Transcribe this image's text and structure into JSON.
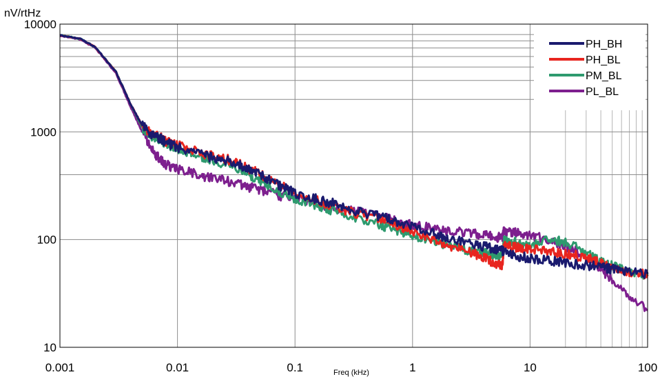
{
  "chart_data": {
    "type": "line",
    "title": "",
    "ylabel": "nV/rtHz",
    "xlabel": "Freq (kHz)",
    "x_scale": "log",
    "y_scale": "log",
    "xlim": [
      0.001,
      100
    ],
    "ylim": [
      10,
      10000
    ],
    "x_ticks": [
      "0.001",
      "0.01",
      "0.1",
      "1",
      "10",
      "100"
    ],
    "y_ticks": [
      "10",
      "100",
      "1000",
      "10000"
    ],
    "grid": true,
    "legend_position": "top-right",
    "series": [
      {
        "name": "PH_BH",
        "color": "#1a1a6e",
        "points": [
          [
            0.001,
            7900
          ],
          [
            0.0015,
            7300
          ],
          [
            0.002,
            6100
          ],
          [
            0.003,
            3600
          ],
          [
            0.004,
            1800
          ],
          [
            0.005,
            1150
          ],
          [
            0.006,
            950
          ],
          [
            0.007,
            880
          ],
          [
            0.008,
            800
          ],
          [
            0.01,
            720
          ],
          [
            0.015,
            640
          ],
          [
            0.02,
            570
          ],
          [
            0.03,
            520
          ],
          [
            0.04,
            450
          ],
          [
            0.05,
            400
          ],
          [
            0.07,
            330
          ],
          [
            0.1,
            270
          ],
          [
            0.15,
            240
          ],
          [
            0.2,
            220
          ],
          [
            0.3,
            190
          ],
          [
            0.5,
            165
          ],
          [
            0.7,
            150
          ],
          [
            1,
            135
          ],
          [
            1.5,
            115
          ],
          [
            2,
            102
          ],
          [
            3,
            92
          ],
          [
            4,
            86
          ],
          [
            5,
            82
          ],
          [
            5.8,
            79
          ],
          [
            6,
            76
          ],
          [
            8,
            70
          ],
          [
            10,
            67
          ],
          [
            15,
            64
          ],
          [
            20,
            61
          ],
          [
            30,
            58
          ],
          [
            40,
            55
          ],
          [
            50,
            53
          ],
          [
            70,
            51
          ],
          [
            100,
            48
          ]
        ]
      },
      {
        "name": "PH_BL",
        "color": "#e8251f",
        "points": [
          [
            0.001,
            7900
          ],
          [
            0.0015,
            7300
          ],
          [
            0.002,
            6100
          ],
          [
            0.003,
            3600
          ],
          [
            0.004,
            1800
          ],
          [
            0.005,
            1150
          ],
          [
            0.006,
            960
          ],
          [
            0.007,
            900
          ],
          [
            0.008,
            820
          ],
          [
            0.01,
            750
          ],
          [
            0.015,
            660
          ],
          [
            0.02,
            590
          ],
          [
            0.03,
            540
          ],
          [
            0.04,
            460
          ],
          [
            0.05,
            410
          ],
          [
            0.07,
            330
          ],
          [
            0.1,
            270
          ],
          [
            0.15,
            235
          ],
          [
            0.2,
            210
          ],
          [
            0.3,
            180
          ],
          [
            0.5,
            155
          ],
          [
            0.7,
            140
          ],
          [
            1,
            120
          ],
          [
            1.5,
            100
          ],
          [
            2,
            88
          ],
          [
            3,
            78
          ],
          [
            4,
            68
          ],
          [
            5,
            60
          ],
          [
            5.8,
            56
          ],
          [
            6,
            88
          ],
          [
            7,
            86
          ],
          [
            8,
            84
          ],
          [
            10,
            83
          ],
          [
            15,
            78
          ],
          [
            20,
            74
          ],
          [
            30,
            68
          ],
          [
            40,
            60
          ],
          [
            50,
            55
          ],
          [
            70,
            50
          ],
          [
            100,
            47
          ]
        ]
      },
      {
        "name": "PM_BL",
        "color": "#2e9a6e",
        "points": [
          [
            0.001,
            7900
          ],
          [
            0.0015,
            7300
          ],
          [
            0.002,
            6100
          ],
          [
            0.003,
            3600
          ],
          [
            0.004,
            1800
          ],
          [
            0.005,
            1100
          ],
          [
            0.006,
            920
          ],
          [
            0.007,
            850
          ],
          [
            0.008,
            780
          ],
          [
            0.01,
            700
          ],
          [
            0.015,
            610
          ],
          [
            0.02,
            540
          ],
          [
            0.03,
            480
          ],
          [
            0.04,
            400
          ],
          [
            0.05,
            350
          ],
          [
            0.07,
            290
          ],
          [
            0.1,
            240
          ],
          [
            0.15,
            210
          ],
          [
            0.2,
            190
          ],
          [
            0.3,
            165
          ],
          [
            0.5,
            140
          ],
          [
            0.7,
            125
          ],
          [
            1,
            110
          ],
          [
            1.5,
            95
          ],
          [
            2,
            88
          ],
          [
            3,
            80
          ],
          [
            4,
            75
          ],
          [
            5,
            72
          ],
          [
            5.8,
            70
          ],
          [
            6,
            100
          ],
          [
            7,
            98
          ],
          [
            8,
            92
          ],
          [
            10,
            90
          ],
          [
            15,
            100
          ],
          [
            20,
            95
          ],
          [
            30,
            75
          ],
          [
            40,
            62
          ],
          [
            50,
            57
          ],
          [
            70,
            52
          ],
          [
            100,
            46
          ]
        ]
      },
      {
        "name": "PL_BL",
        "color": "#7d1f8e",
        "points": [
          [
            0.001,
            7800
          ],
          [
            0.0015,
            7200
          ],
          [
            0.002,
            6000
          ],
          [
            0.003,
            3500
          ],
          [
            0.004,
            1700
          ],
          [
            0.005,
            1000
          ],
          [
            0.006,
            700
          ],
          [
            0.007,
            560
          ],
          [
            0.008,
            500
          ],
          [
            0.01,
            450
          ],
          [
            0.015,
            400
          ],
          [
            0.02,
            370
          ],
          [
            0.03,
            340
          ],
          [
            0.04,
            310
          ],
          [
            0.05,
            290
          ],
          [
            0.07,
            260
          ],
          [
            0.1,
            240
          ],
          [
            0.15,
            220
          ],
          [
            0.2,
            200
          ],
          [
            0.3,
            185
          ],
          [
            0.5,
            165
          ],
          [
            0.7,
            150
          ],
          [
            1,
            135
          ],
          [
            1.5,
            128
          ],
          [
            2,
            122
          ],
          [
            3,
            116
          ],
          [
            4,
            110
          ],
          [
            5,
            106
          ],
          [
            5.8,
            104
          ],
          [
            6,
            120
          ],
          [
            7,
            118
          ],
          [
            8,
            115
          ],
          [
            10,
            110
          ],
          [
            15,
            98
          ],
          [
            20,
            88
          ],
          [
            30,
            70
          ],
          [
            40,
            52
          ],
          [
            50,
            42
          ],
          [
            70,
            30
          ],
          [
            100,
            22
          ]
        ]
      }
    ]
  }
}
